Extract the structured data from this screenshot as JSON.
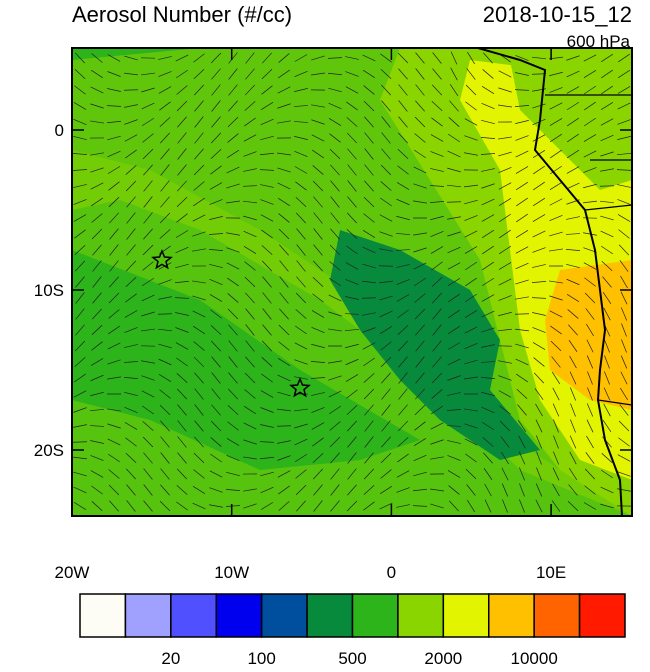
{
  "header": {
    "title": "Aerosol Number (#/cc)",
    "date": "2018-10-15_12",
    "level": "600 hPa"
  },
  "axes": {
    "y_labels": [
      "0",
      "10S",
      "20S"
    ],
    "x_labels": [
      "20W",
      "10W",
      "0",
      "10E"
    ]
  },
  "colorbar": {
    "colors": [
      "#fdfdf5",
      "#a0a0ff",
      "#5050ff",
      "#0000ee",
      "#004f9e",
      "#078a3c",
      "#2db41a",
      "#8ad500",
      "#e2f400",
      "#ffc000",
      "#ff6400",
      "#ff1a00"
    ],
    "labels": [
      "20",
      "100",
      "500",
      "2000",
      "10000"
    ]
  }
}
